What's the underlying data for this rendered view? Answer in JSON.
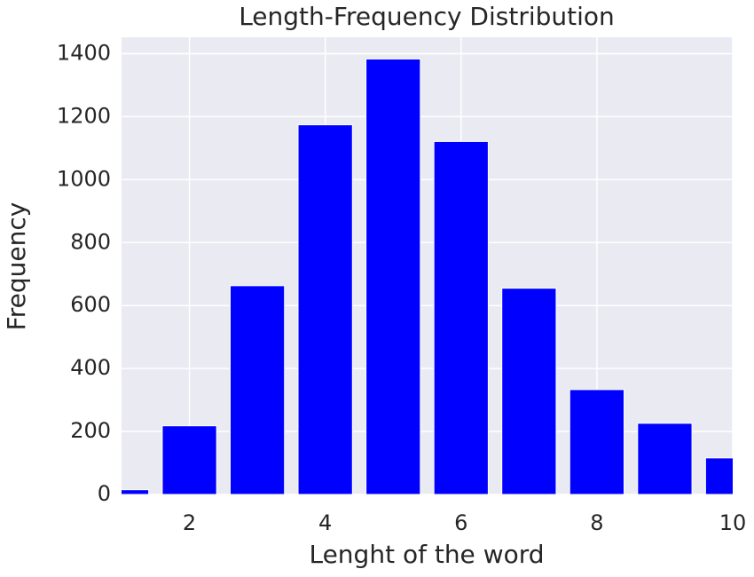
{
  "chart_data": {
    "type": "bar",
    "title": "Length-Frequency Distribution",
    "x_label": "Lenght of the word",
    "y_label": "Frequency",
    "x": [
      1,
      2,
      3,
      4,
      5,
      6,
      7,
      8,
      9,
      10
    ],
    "values": [
      15,
      218,
      663,
      1174,
      1383,
      1121,
      655,
      333,
      226,
      116
    ],
    "color": "#0000ff",
    "xlim": [
      1,
      10
    ],
    "xticks": [
      2,
      4,
      6,
      8,
      10
    ],
    "ylim": [
      0,
      1452
    ],
    "yticks": [
      0,
      200,
      400,
      600,
      800,
      1000,
      1200,
      1400
    ],
    "grid": true
  }
}
